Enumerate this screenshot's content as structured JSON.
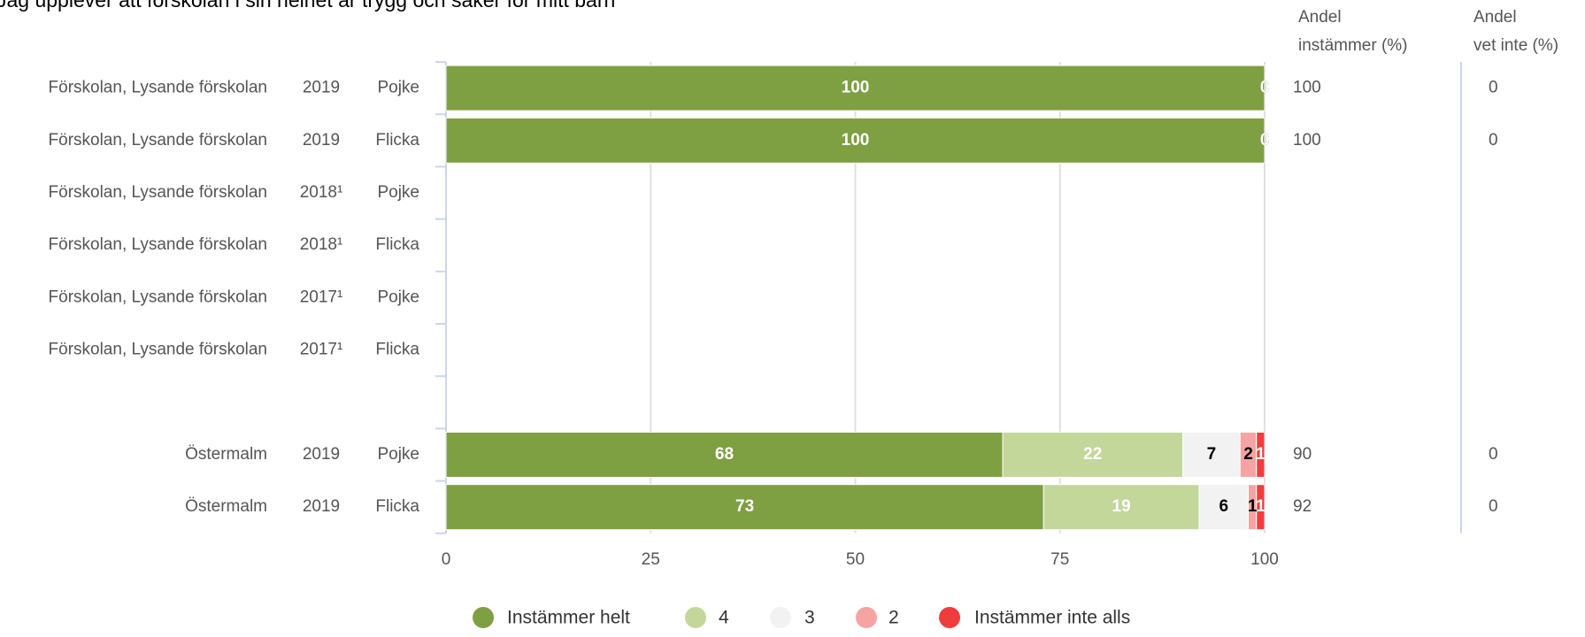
{
  "chart_data": {
    "type": "stacked-bar-horizontal",
    "title": "Jag upplever att förskolan i sin helhet är trygg och säker för mitt barn",
    "categories": [
      [
        "Förskolan, Lysande förskolan",
        "2019",
        "Pojke"
      ],
      [
        "Förskolan, Lysande förskolan",
        "2019",
        "Flicka"
      ],
      [
        "Förskolan, Lysande förskolan",
        "2018¹",
        "Pojke"
      ],
      [
        "Förskolan, Lysande förskolan",
        "2018¹",
        "Flicka"
      ],
      [
        "Förskolan, Lysande förskolan",
        "2017¹",
        "Pojke"
      ],
      [
        "Förskolan, Lysande förskolan",
        "2017¹",
        "Flicka"
      ],
      null,
      [
        "Östermalm",
        "2019",
        "Pojke"
      ],
      [
        "Östermalm",
        "2019",
        "Flicka"
      ]
    ],
    "series": [
      {
        "name": "Instämmer helt",
        "color": "#7f9f43",
        "label_color": "#ffffff",
        "values": [
          100,
          100,
          null,
          null,
          null,
          null,
          null,
          68,
          73
        ]
      },
      {
        "name": "4",
        "color": "#c4d79b",
        "label_color": "#ffffff",
        "values": [
          0,
          0,
          null,
          null,
          null,
          null,
          null,
          22,
          19
        ]
      },
      {
        "name": "3",
        "color": "#f2f2f2",
        "label_color": "#000000",
        "values": [
          0,
          0,
          null,
          null,
          null,
          null,
          null,
          7,
          6
        ]
      },
      {
        "name": "2",
        "color": "#f5a3a3",
        "label_color": "#000000",
        "values": [
          0,
          0,
          null,
          null,
          null,
          null,
          null,
          2,
          1
        ]
      },
      {
        "name": "Instämmer inte alls",
        "color": "#f03c3c",
        "label_color": "#ffffff",
        "values": [
          0,
          0,
          null,
          null,
          null,
          null,
          null,
          1,
          1
        ]
      }
    ],
    "columns": [
      {
        "header": [
          "Andel",
          "instämmer (%)"
        ],
        "values": [
          100,
          100,
          null,
          null,
          null,
          null,
          null,
          90,
          92
        ]
      },
      {
        "header": [
          "Andel",
          "vet inte (%)"
        ],
        "values": [
          0,
          0,
          null,
          null,
          null,
          null,
          null,
          0,
          0
        ]
      }
    ],
    "xlim": [
      0,
      100
    ],
    "xticks": [
      0,
      25,
      50,
      75,
      100
    ],
    "grid": true,
    "legend": "bottom"
  }
}
